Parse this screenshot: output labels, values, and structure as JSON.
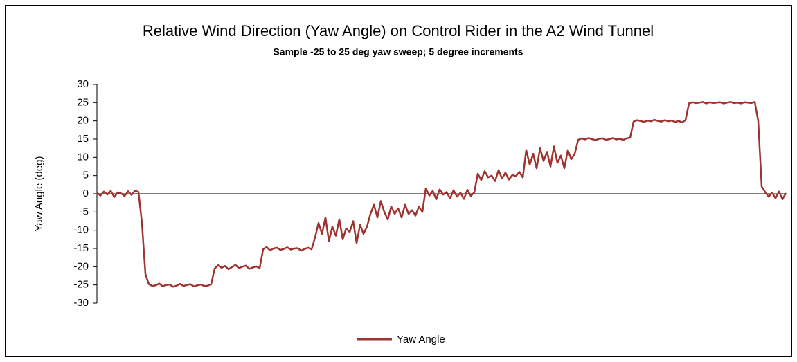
{
  "chart_data": {
    "type": "line",
    "title": "Relative Wind Direction (Yaw Angle) on Control Rider in the A2 Wind Tunnel",
    "subtitle": "Sample -25 to 25 deg yaw sweep; 5 degree increments",
    "y_label": "Yaw Angle (deg)",
    "ylim": [
      -30,
      30
    ],
    "yticks": [
      -30,
      -25,
      -20,
      -15,
      -10,
      -5,
      0,
      5,
      10,
      15,
      20,
      25,
      30
    ],
    "legend": "bottom",
    "series": [
      {
        "name": "Yaw Angle",
        "color": "#9e3330",
        "values": [
          0.3,
          -0.5,
          0.6,
          -0.2,
          0.8,
          -0.9,
          0.4,
          0.1,
          -0.6,
          0.7,
          -0.3,
          0.9,
          0.5,
          -8,
          -22,
          -24.8,
          -25.3,
          -25.1,
          -24.6,
          -25.4,
          -25,
          -24.9,
          -25.5,
          -25.2,
          -24.7,
          -25.3,
          -25,
          -24.8,
          -25.4,
          -25.1,
          -24.9,
          -25.3,
          -25.2,
          -24.8,
          -20.5,
          -19.6,
          -20.3,
          -19.8,
          -20.7,
          -20.1,
          -19.5,
          -20.4,
          -20.0,
          -19.7,
          -20.6,
          -20.2,
          -19.9,
          -20.4,
          -15.2,
          -14.6,
          -15.5,
          -15.0,
          -14.8,
          -15.4,
          -15.1,
          -14.7,
          -15.3,
          -15.0,
          -14.9,
          -15.6,
          -15.1,
          -14.8,
          -15.2,
          -12,
          -8,
          -11,
          -6.5,
          -13,
          -9,
          -11.5,
          -7,
          -12.5,
          -9.5,
          -10.5,
          -7.5,
          -13.5,
          -8.5,
          -11,
          -9,
          -5.5,
          -3,
          -6.5,
          -2,
          -5,
          -7,
          -3.5,
          -5.5,
          -4,
          -6.5,
          -3,
          -5.5,
          -4.5,
          -6,
          -3.5,
          -5,
          1.5,
          -0.5,
          0.8,
          -1.5,
          1.2,
          -0.2,
          0.5,
          -1.3,
          1.0,
          -0.8,
          0.3,
          -1.4,
          1.1,
          -0.6,
          0.4,
          5.5,
          3.8,
          6.2,
          4.5,
          5.0,
          3.5,
          6.5,
          4.2,
          5.8,
          3.9,
          5.2,
          4.8,
          6.0,
          4.5,
          12,
          8,
          11,
          7,
          12.5,
          9,
          11.5,
          7.5,
          13,
          8.5,
          10.5,
          7,
          12,
          9.5,
          11,
          14.8,
          15.2,
          14.9,
          15.3,
          15.0,
          14.7,
          15.1,
          15.2,
          14.8,
          15.0,
          15.3,
          14.9,
          15.1,
          14.8,
          15.2,
          15.4,
          19.8,
          20.2,
          20.0,
          19.7,
          20.1,
          19.9,
          20.3,
          20.0,
          19.8,
          20.2,
          19.9,
          20.1,
          19.7,
          20.0,
          19.6,
          20.2,
          24.8,
          25.1,
          24.9,
          25.0,
          25.2,
          24.8,
          25.1,
          24.9,
          25.0,
          25.1,
          24.8,
          25.0,
          25.2,
          24.9,
          25.0,
          24.8,
          25.1,
          25.0,
          24.9,
          25.2,
          20,
          2,
          0.5,
          -0.8,
          0.3,
          -1.2,
          0.6,
          -1.5,
          0.2
        ]
      }
    ]
  }
}
